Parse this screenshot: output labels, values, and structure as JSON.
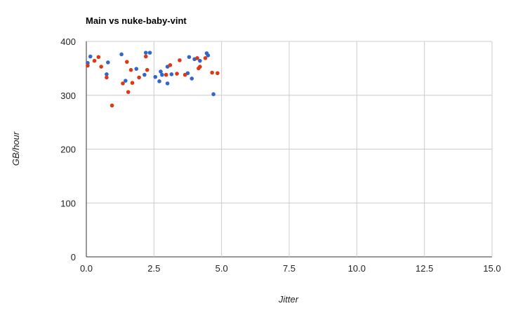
{
  "chart_data": {
    "type": "scatter",
    "title": "Main vs nuke-baby-vint",
    "xlabel": "Jitter",
    "ylabel": "GB/hour",
    "xlim": [
      0,
      15
    ],
    "ylim": [
      0,
      400
    ],
    "x_ticks": [
      "0.0",
      "2.5",
      "5.0",
      "7.5",
      "10.0",
      "12.5",
      "15.0"
    ],
    "x_tick_values": [
      0,
      2.5,
      5,
      7.5,
      10,
      12.5,
      15
    ],
    "y_ticks": [
      "0",
      "100",
      "200",
      "300",
      "400"
    ],
    "y_tick_values": [
      0,
      100,
      200,
      300,
      400
    ],
    "grid": true,
    "series": [
      {
        "color": "#3366cc",
        "points": [
          [
            0.05,
            360
          ],
          [
            0.15,
            372
          ],
          [
            0.8,
            361
          ],
          [
            0.75,
            339
          ],
          [
            1.3,
            376
          ],
          [
            1.45,
            327
          ],
          [
            1.85,
            349
          ],
          [
            2.15,
            338
          ],
          [
            2.2,
            379
          ],
          [
            2.35,
            379
          ],
          [
            2.55,
            334
          ],
          [
            2.7,
            326
          ],
          [
            2.75,
            344
          ],
          [
            2.8,
            338
          ],
          [
            3.0,
            322
          ],
          [
            3.0,
            353
          ],
          [
            3.15,
            339
          ],
          [
            3.75,
            341
          ],
          [
            3.8,
            371
          ],
          [
            3.9,
            331
          ],
          [
            4.0,
            367
          ],
          [
            4.2,
            364
          ],
          [
            4.45,
            378
          ],
          [
            4.5,
            374
          ],
          [
            4.7,
            302
          ]
        ]
      },
      {
        "color": "#dc3912",
        "points": [
          [
            0.05,
            355
          ],
          [
            0.3,
            364
          ],
          [
            0.45,
            371
          ],
          [
            0.55,
            353
          ],
          [
            0.75,
            333
          ],
          [
            0.95,
            281
          ],
          [
            1.35,
            322
          ],
          [
            1.5,
            362
          ],
          [
            1.55,
            306
          ],
          [
            1.65,
            347
          ],
          [
            1.7,
            323
          ],
          [
            1.95,
            333
          ],
          [
            2.2,
            372
          ],
          [
            2.25,
            347
          ],
          [
            2.95,
            338
          ],
          [
            3.1,
            356
          ],
          [
            3.35,
            340
          ],
          [
            3.45,
            365
          ],
          [
            3.65,
            338
          ],
          [
            4.1,
            369
          ],
          [
            4.15,
            350
          ],
          [
            4.2,
            353
          ],
          [
            4.4,
            369
          ],
          [
            4.65,
            342
          ],
          [
            4.85,
            341
          ]
        ]
      }
    ]
  }
}
